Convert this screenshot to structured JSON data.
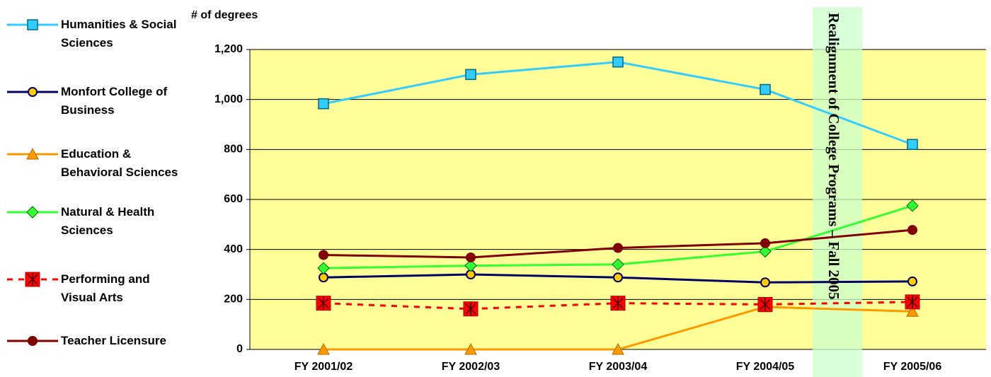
{
  "chart_data": {
    "type": "line",
    "y_label": "# of degrees",
    "annotation": "Realignment of College Programs – Fall 2005",
    "categories": [
      "FY 2001/02",
      "FY 2002/03",
      "FY 2003/04",
      "FY 2004/05",
      "FY 2005/06"
    ],
    "ylim": [
      0,
      1200
    ],
    "yticks": [
      0,
      200,
      400,
      600,
      800,
      {
        "value": 1000,
        "label": "1,000"
      },
      {
        "value": 1200,
        "label": "1,200"
      }
    ],
    "grid": true,
    "legend": "left",
    "series": [
      {
        "name": "Humanities & Social Sciences",
        "color": "#33ccff",
        "marker": "square",
        "values": [
          983,
          1100,
          1150,
          1040,
          820
        ]
      },
      {
        "name": "Monfort College of Business",
        "color": "#000066",
        "marker": "circle",
        "values": [
          288,
          300,
          288,
          268,
          272
        ]
      },
      {
        "name": "Education & Behavioral Sciences",
        "color": "#ff9900",
        "marker": "triangle",
        "values": [
          0,
          0,
          0,
          170,
          152
        ]
      },
      {
        "name": "Natural & Health Sciences",
        "color": "#33ff33",
        "marker": "diamond",
        "values": [
          325,
          335,
          340,
          392,
          575
        ]
      },
      {
        "name": "Performing and Visual Arts",
        "color": "#ff0000",
        "marker": "asterisk-square",
        "dashed": true,
        "values": [
          185,
          162,
          185,
          180,
          190
        ]
      },
      {
        "name": "Teacher Licensure",
        "color": "#800000",
        "marker": "circle",
        "values": [
          378,
          368,
          406,
          425,
          478
        ]
      }
    ]
  }
}
